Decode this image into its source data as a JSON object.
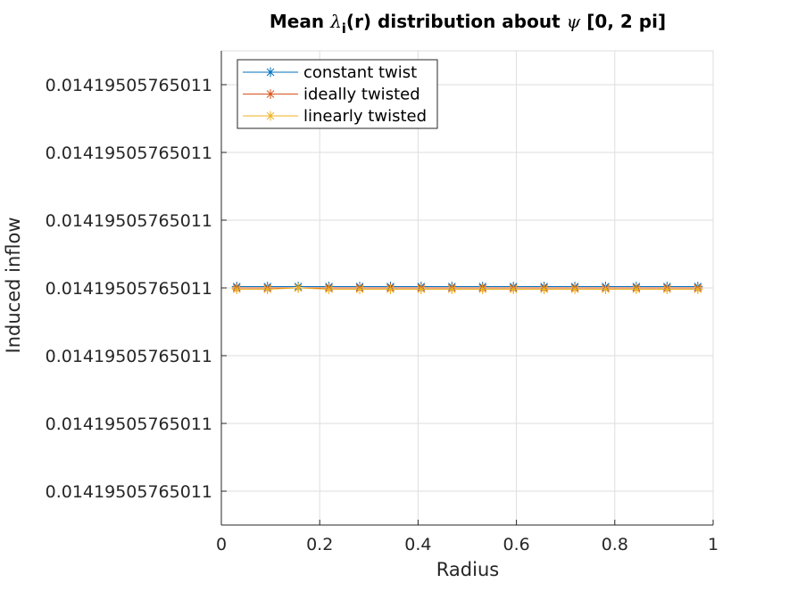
{
  "chart_data": {
    "type": "line",
    "title": {
      "prefix": "Mean ",
      "lambda": "λ",
      "subscript": "i",
      "middle": "(r) distribution about ",
      "psi": "ψ",
      "suffix": " [0, 2 pi]"
    },
    "xlabel": "Radius",
    "ylabel": "Induced inflow",
    "xlim": [
      0,
      1
    ],
    "ylim": [
      -3.5,
      3.5
    ],
    "x_ticks": [
      0,
      0.2,
      0.4,
      0.6,
      0.8,
      1
    ],
    "x_tick_labels": [
      "0",
      "0.2",
      "0.4",
      "0.6",
      "0.8",
      "1"
    ],
    "y_ticks": [
      3,
      2,
      1,
      0,
      -1,
      -2,
      -3
    ],
    "y_tick_labels": [
      "0.01419505765011",
      "0.01419505765011",
      "0.01419505765011",
      "0.01419505765011",
      "0.01419505765011",
      "0.01419505765011",
      "0.01419505765011"
    ],
    "grid": true,
    "legend_position": "top-left",
    "x": [
      0.0313,
      0.0938,
      0.1563,
      0.2188,
      0.2813,
      0.3438,
      0.4063,
      0.4688,
      0.5313,
      0.5938,
      0.6563,
      0.7188,
      0.7813,
      0.8438,
      0.9063,
      0.9688
    ],
    "series": [
      {
        "name": "constant twist",
        "color": "#0072BD",
        "marker": "asterisk",
        "values": [
          0.02,
          0.02,
          0.02,
          0.02,
          0.02,
          0.02,
          0.02,
          0.02,
          0.02,
          0.02,
          0.02,
          0.02,
          0.02,
          0.02,
          0.02,
          0.02
        ]
      },
      {
        "name": "ideally twisted",
        "color": "#D95319",
        "marker": "asterisk",
        "values": [
          0.0,
          0.0,
          0.0,
          0.0,
          0.0,
          0.0,
          0.0,
          0.0,
          0.0,
          0.0,
          0.0,
          0.0,
          0.0,
          0.0,
          0.0,
          0.0
        ]
      },
      {
        "name": "linearly twisted",
        "color": "#EDB120",
        "marker": "asterisk",
        "values": [
          -0.02,
          -0.02,
          0.0,
          -0.02,
          -0.02,
          -0.02,
          -0.02,
          -0.02,
          -0.02,
          -0.02,
          -0.02,
          -0.02,
          -0.02,
          -0.02,
          -0.02,
          -0.02
        ]
      }
    ]
  }
}
